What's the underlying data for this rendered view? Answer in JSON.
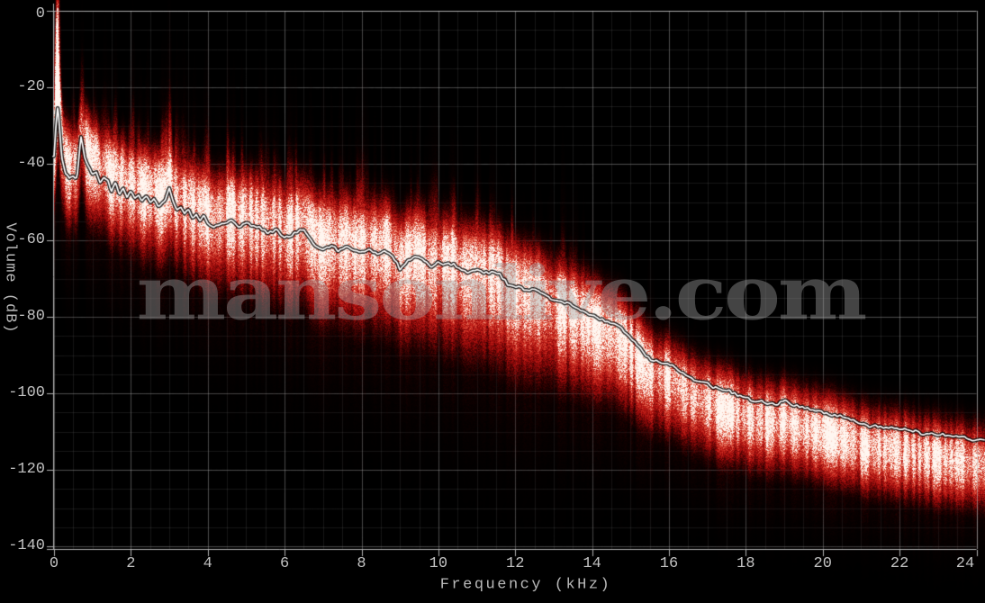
{
  "app": {
    "kind": "audio-spectrum-analysis-screenshot",
    "background": "#000000"
  },
  "watermark": {
    "text": "mansonlive.com",
    "color": "#a2a2a2",
    "opacity": 0.42
  },
  "chart_data": {
    "type": "area",
    "subtype": "spectrum-density",
    "title": "",
    "xlabel": "Frequency (kHz)",
    "ylabel": "Volume (dB)",
    "xlim": [
      0,
      24.25
    ],
    "ylim": [
      -140,
      0
    ],
    "grid": true,
    "x_minor_step_khz": 0.5,
    "y_minor_step_db": 5,
    "x_ticks": [
      {
        "value": 0,
        "label": "0"
      },
      {
        "value": 2,
        "label": "2"
      },
      {
        "value": 4,
        "label": "4"
      },
      {
        "value": 6,
        "label": "6"
      },
      {
        "value": 8,
        "label": "8"
      },
      {
        "value": 10,
        "label": "10"
      },
      {
        "value": 12,
        "label": "12"
      },
      {
        "value": 14,
        "label": "14"
      },
      {
        "value": 16,
        "label": "16"
      },
      {
        "value": 18,
        "label": "18"
      },
      {
        "value": 20,
        "label": "20"
      },
      {
        "value": 22,
        "label": "22"
      },
      {
        "value": 24,
        "label": "24"
      }
    ],
    "y_ticks": [
      {
        "value": 0,
        "label": "0"
      },
      {
        "value": -20,
        "label": "-20"
      },
      {
        "value": -40,
        "label": "-40"
      },
      {
        "value": -60,
        "label": "-60"
      },
      {
        "value": -80,
        "label": "-80"
      },
      {
        "value": -100,
        "label": "-100"
      },
      {
        "value": -120,
        "label": "-120"
      },
      {
        "value": -140,
        "label": "-140"
      }
    ],
    "colors": {
      "axis": "#b0b0b0",
      "tick_label": "#c2c2c2",
      "grid_major": "rgba(190,190,190,0.40)",
      "grid_minor": "rgba(140,140,140,0.16)",
      "line": "#ffffff",
      "line_outline": "#000000"
    },
    "series": [
      {
        "name": "average-level-db",
        "color": "#ffffff",
        "points": [
          [
            0,
            -38
          ],
          [
            0.05,
            -30
          ],
          [
            0.1,
            -24.5
          ],
          [
            0.15,
            -31
          ],
          [
            0.2,
            -38
          ],
          [
            0.3,
            -42.5
          ],
          [
            0.4,
            -44
          ],
          [
            0.5,
            -43
          ],
          [
            0.55,
            -44
          ],
          [
            0.6,
            -43.5
          ],
          [
            0.65,
            -38
          ],
          [
            0.7,
            -33
          ],
          [
            0.75,
            -35.5
          ],
          [
            0.8,
            -38.5
          ],
          [
            0.9,
            -41
          ],
          [
            1,
            -42.5
          ],
          [
            1.1,
            -42
          ],
          [
            1.2,
            -45
          ],
          [
            1.3,
            -43.5
          ],
          [
            1.4,
            -44.5
          ],
          [
            1.5,
            -47
          ],
          [
            1.6,
            -45
          ],
          [
            1.7,
            -48
          ],
          [
            1.8,
            -46
          ],
          [
            1.9,
            -48.5
          ],
          [
            2,
            -47.5
          ],
          [
            2.1,
            -49
          ],
          [
            2.2,
            -48
          ],
          [
            2.3,
            -50
          ],
          [
            2.4,
            -48.5
          ],
          [
            2.5,
            -50
          ],
          [
            2.6,
            -49
          ],
          [
            2.7,
            -51
          ],
          [
            2.8,
            -50.5
          ],
          [
            2.9,
            -49.5
          ],
          [
            3,
            -46.5
          ],
          [
            3.1,
            -50
          ],
          [
            3.2,
            -52
          ],
          [
            3.3,
            -51
          ],
          [
            3.4,
            -53
          ],
          [
            3.5,
            -52
          ],
          [
            3.6,
            -54
          ],
          [
            3.7,
            -53
          ],
          [
            3.8,
            -55
          ],
          [
            3.9,
            -53.5
          ],
          [
            4,
            -55.5
          ],
          [
            4.2,
            -56.5
          ],
          [
            4.4,
            -55.5
          ],
          [
            4.6,
            -55
          ],
          [
            4.8,
            -56.5
          ],
          [
            5,
            -55.5
          ],
          [
            5.2,
            -56.5
          ],
          [
            5.4,
            -57
          ],
          [
            5.6,
            -58
          ],
          [
            5.8,
            -57.5
          ],
          [
            6,
            -59.5
          ],
          [
            6.2,
            -58.5
          ],
          [
            6.4,
            -57.5
          ],
          [
            6.5,
            -57.2
          ],
          [
            6.6,
            -59
          ],
          [
            6.8,
            -61.5
          ],
          [
            7,
            -62.5
          ],
          [
            7.2,
            -61.5
          ],
          [
            7.4,
            -62.5
          ],
          [
            7.6,
            -61.8
          ],
          [
            7.8,
            -63
          ],
          [
            8,
            -63.2
          ],
          [
            8.2,
            -62.5
          ],
          [
            8.4,
            -63.5
          ],
          [
            8.6,
            -62.7
          ],
          [
            8.8,
            -64
          ],
          [
            9,
            -67.5
          ],
          [
            9.2,
            -65.5
          ],
          [
            9.4,
            -64.2
          ],
          [
            9.6,
            -65
          ],
          [
            9.8,
            -67
          ],
          [
            10,
            -66
          ],
          [
            10.2,
            -66.5
          ],
          [
            10.4,
            -66.2
          ],
          [
            10.6,
            -68
          ],
          [
            10.8,
            -68.5
          ],
          [
            11,
            -67.8
          ],
          [
            11.2,
            -68.5
          ],
          [
            11.4,
            -68.2
          ],
          [
            11.6,
            -69
          ],
          [
            11.8,
            -71.5
          ],
          [
            12,
            -72
          ],
          [
            12.2,
            -72.5
          ],
          [
            12.4,
            -73
          ],
          [
            12.6,
            -73.2
          ],
          [
            12.8,
            -74.5
          ],
          [
            13,
            -75.5
          ],
          [
            13.2,
            -76
          ],
          [
            13.4,
            -76.5
          ],
          [
            13.6,
            -77.5
          ],
          [
            13.8,
            -78.5
          ],
          [
            14,
            -79.5
          ],
          [
            14.2,
            -80.5
          ],
          [
            14.4,
            -81.5
          ],
          [
            14.6,
            -82
          ],
          [
            14.8,
            -83.5
          ],
          [
            15,
            -85.5
          ],
          [
            15.2,
            -87.5
          ],
          [
            15.4,
            -90
          ],
          [
            15.6,
            -91.5
          ],
          [
            15.8,
            -92
          ],
          [
            16,
            -92.5
          ],
          [
            16.2,
            -93.5
          ],
          [
            16.4,
            -95
          ],
          [
            16.6,
            -96
          ],
          [
            16.8,
            -97
          ],
          [
            17,
            -97.5
          ],
          [
            17.2,
            -98.5
          ],
          [
            17.4,
            -99.5
          ],
          [
            17.6,
            -99.5
          ],
          [
            17.8,
            -100.5
          ],
          [
            18,
            -101
          ],
          [
            18.2,
            -102
          ],
          [
            18.4,
            -102
          ],
          [
            18.6,
            -102.5
          ],
          [
            18.8,
            -102.7
          ],
          [
            19,
            -101.8
          ],
          [
            19.2,
            -103
          ],
          [
            19.4,
            -103.5
          ],
          [
            19.6,
            -104
          ],
          [
            19.8,
            -104.5
          ],
          [
            20,
            -105
          ],
          [
            20.2,
            -105.5
          ],
          [
            20.4,
            -106
          ],
          [
            20.6,
            -106.5
          ],
          [
            20.8,
            -107
          ],
          [
            21,
            -108
          ],
          [
            21.2,
            -108.5
          ],
          [
            21.4,
            -108.5
          ],
          [
            21.6,
            -109
          ],
          [
            21.8,
            -109
          ],
          [
            22,
            -109.5
          ],
          [
            22.2,
            -109.5
          ],
          [
            22.4,
            -110
          ],
          [
            22.6,
            -110.5
          ],
          [
            22.8,
            -110.5
          ],
          [
            23,
            -111
          ],
          [
            23.2,
            -111
          ],
          [
            23.4,
            -111.5
          ],
          [
            23.6,
            -111.5
          ],
          [
            23.8,
            -112
          ],
          [
            24,
            -112
          ],
          [
            24.25,
            -112.4
          ]
        ]
      }
    ],
    "density": {
      "ramp": [
        [
          0.0,
          "#000000"
        ],
        [
          0.16,
          "#260000"
        ],
        [
          0.34,
          "#670404"
        ],
        [
          0.52,
          "#a30c0c"
        ],
        [
          0.68,
          "#cc2a20"
        ],
        [
          0.8,
          "#e4674f"
        ],
        [
          0.9,
          "#f3b3a2"
        ],
        [
          1.0,
          "#fff6f0"
        ]
      ],
      "offset_db": [
        [
          0,
          4
        ],
        [
          8,
          3
        ],
        [
          12,
          1
        ],
        [
          15,
          -2
        ],
        [
          17,
          -4
        ],
        [
          20,
          -5
        ],
        [
          24,
          -6
        ]
      ],
      "sigma_up_db": [
        [
          0,
          7
        ],
        [
          6,
          8
        ],
        [
          12,
          8
        ],
        [
          16,
          7
        ],
        [
          24,
          7
        ]
      ],
      "sigma_down_db": [
        [
          0,
          11
        ],
        [
          6,
          14
        ],
        [
          12,
          16
        ],
        [
          16,
          10
        ],
        [
          20,
          8.5
        ],
        [
          24,
          8
        ]
      ],
      "streak_reach_db": [
        [
          0,
          18
        ],
        [
          2,
          24
        ],
        [
          6,
          26
        ],
        [
          10,
          27
        ],
        [
          13,
          24
        ],
        [
          15,
          18
        ],
        [
          17,
          13
        ],
        [
          20,
          11
        ],
        [
          24,
          10
        ]
      ],
      "hot_spike": {
        "khz": 0.07,
        "width_khz": 0.045,
        "gain": 1.1
      },
      "peaks_khz_boost": [
        [
          0.5,
          8
        ],
        [
          0.7,
          12
        ],
        [
          1,
          7
        ],
        [
          1.3,
          6
        ],
        [
          1.6,
          6
        ],
        [
          2,
          5
        ],
        [
          2.4,
          5
        ],
        [
          3,
          12
        ],
        [
          3.3,
          5
        ],
        [
          4,
          5
        ],
        [
          4.5,
          4
        ],
        [
          5,
          5
        ],
        [
          5.6,
          5
        ],
        [
          6,
          4
        ],
        [
          6.5,
          9
        ],
        [
          7,
          4
        ],
        [
          7.5,
          5
        ],
        [
          8,
          4
        ],
        [
          8.5,
          4
        ],
        [
          9,
          6
        ],
        [
          9.5,
          5
        ],
        [
          10,
          4
        ],
        [
          10.5,
          5
        ],
        [
          11,
          4
        ],
        [
          11.5,
          6
        ],
        [
          12.2,
          6
        ],
        [
          12.7,
          4
        ],
        [
          13.2,
          4
        ],
        [
          14,
          3
        ],
        [
          15.6,
          6
        ],
        [
          15.9,
          5
        ],
        [
          16.3,
          3
        ],
        [
          19,
          5
        ],
        [
          21.6,
          3
        ]
      ]
    }
  }
}
